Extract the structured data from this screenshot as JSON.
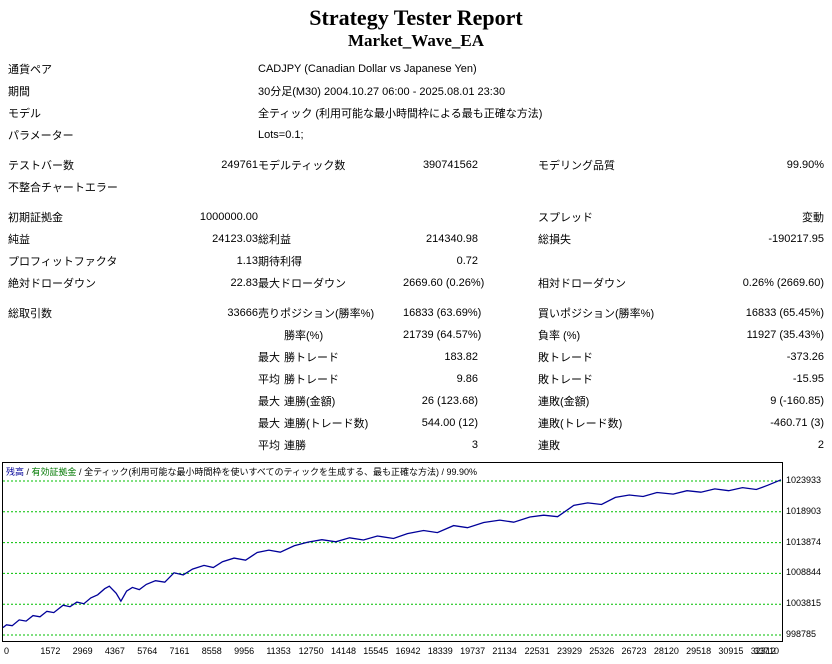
{
  "header": {
    "title": "Strategy Tester Report",
    "subtitle": "Market_Wave_EA"
  },
  "info": [
    {
      "label": "通貨ペア",
      "value": "CADJPY (Canadian Dollar vs Japanese Yen)"
    },
    {
      "label": "期間",
      "value": "30分足(M30) 2004.10.27 06:00 - 2025.08.01 23:30"
    },
    {
      "label": "モデル",
      "value": "全ティック (利用可能な最小時間枠による最も正確な方法)"
    },
    {
      "label": "パラメーター",
      "value": "Lots=0.1;"
    }
  ],
  "stats": [
    {
      "c1": "テストバー数",
      "v1": "249761",
      "c3": "モデルティック数",
      "v2": "390741562",
      "c5": "モデリング品質",
      "v3": "99.90%"
    },
    {
      "c1": "不整合チャートエラー",
      "v1": "",
      "c3": "",
      "v2": "",
      "c5": "",
      "v3": ""
    },
    {
      "c1": "初期証拠金",
      "v1": "1000000.00",
      "c3": "",
      "v2": "",
      "c5": "スプレッド",
      "v3": "変動"
    },
    {
      "c1": "純益",
      "v1": "24123.03",
      "c3": "総利益",
      "v2": "214340.98",
      "c5": "総損失",
      "v3": "-190217.95"
    },
    {
      "c1": "プロフィットファクタ",
      "v1": "1.13",
      "c3": "期待利得",
      "v2": "0.72",
      "c5": "",
      "v3": ""
    },
    {
      "c1": "絶対ドローダウン",
      "v1": "22.83",
      "c3": "最大ドローダウン",
      "v2": "2669.60 (0.26%)",
      "c5": "相対ドローダウン",
      "v3": "0.26% (2669.60)"
    },
    {
      "c1": "総取引数",
      "v1": "33666",
      "c3": "売りポジション(勝率%)",
      "v2": "16833 (63.69%)",
      "c5": "買いポジション(勝率%)",
      "v3": "16833 (65.45%)"
    },
    {
      "q": "",
      "c3": "勝率(%)",
      "v2": "21739 (64.57%)",
      "c5": "負率 (%)",
      "v3": "11927 (35.43%)"
    },
    {
      "q": "最大",
      "c3": "勝トレード",
      "v2": "183.82",
      "c5": "敗トレード",
      "v3": "-373.26"
    },
    {
      "q": "平均",
      "c3": "勝トレード",
      "v2": "9.86",
      "c5": "敗トレード",
      "v3": "-15.95"
    },
    {
      "q": "最大",
      "c3": "連勝(金額)",
      "v2": "26 (123.68)",
      "c5": "連敗(金額)",
      "v3": "9 (-160.85)"
    },
    {
      "q": "最大",
      "c3": "連勝(トレード数)",
      "v2": "544.00 (12)",
      "c5": "連敗(トレード数)",
      "v3": "-460.71 (3)"
    },
    {
      "q": "平均",
      "c3": "連勝",
      "v2": "3",
      "c5": "連敗",
      "v3": "2"
    }
  ],
  "chart_data": {
    "type": "line",
    "legend_items": [
      {
        "text": "残高",
        "color": "#000099"
      },
      {
        "text": "有効証拠金",
        "color": "#007800"
      },
      {
        "text": "全ティック(利用可能な最小時間枠を使いすべてのティックを生成する、最も正確な方法)",
        "color": "#000000"
      },
      {
        "text": "99.90%",
        "color": "#000000"
      }
    ],
    "legend_separator": " / ",
    "x_ticks": [
      0,
      1572,
      2969,
      4367,
      5764,
      7161,
      8558,
      9956,
      11353,
      12750,
      14148,
      15545,
      16942,
      18339,
      19737,
      21134,
      22531,
      23929,
      25326,
      26723,
      28120,
      29518,
      30915,
      32312,
      33710
    ],
    "y_ticks": [
      1023933,
      1018903,
      1013874,
      1008844,
      1003815,
      998785
    ],
    "x_range": [
      0,
      33710
    ],
    "plot_value_range": [
      997805,
      1026872
    ],
    "grid_color": "#00c000",
    "line_color": "#000099",
    "series": [
      {
        "name": "残高",
        "color": "#000099",
        "points": [
          [
            0,
            1000000
          ],
          [
            150,
            1000450
          ],
          [
            400,
            1000300
          ],
          [
            700,
            1001250
          ],
          [
            1000,
            1001050
          ],
          [
            1300,
            1001950
          ],
          [
            1600,
            1001750
          ],
          [
            1900,
            1002650
          ],
          [
            2200,
            1002450
          ],
          [
            2600,
            1003650
          ],
          [
            2900,
            1003400
          ],
          [
            3200,
            1004150
          ],
          [
            3500,
            1003900
          ],
          [
            3800,
            1004850
          ],
          [
            4100,
            1005350
          ],
          [
            4400,
            1006350
          ],
          [
            4600,
            1006750
          ],
          [
            4900,
            1005600
          ],
          [
            5100,
            1004300
          ],
          [
            5350,
            1005950
          ],
          [
            5600,
            1006550
          ],
          [
            5900,
            1006200
          ],
          [
            6200,
            1007050
          ],
          [
            6600,
            1007650
          ],
          [
            7000,
            1007400
          ],
          [
            7400,
            1008950
          ],
          [
            7800,
            1008600
          ],
          [
            8200,
            1009550
          ],
          [
            8700,
            1010150
          ],
          [
            9100,
            1009800
          ],
          [
            9500,
            1010750
          ],
          [
            10000,
            1011350
          ],
          [
            10500,
            1011000
          ],
          [
            11000,
            1012250
          ],
          [
            11500,
            1012650
          ],
          [
            12000,
            1012300
          ],
          [
            12600,
            1013350
          ],
          [
            13200,
            1013950
          ],
          [
            13800,
            1014350
          ],
          [
            14400,
            1014000
          ],
          [
            15000,
            1014650
          ],
          [
            15600,
            1014300
          ],
          [
            16200,
            1014950
          ],
          [
            16900,
            1014550
          ],
          [
            17500,
            1015350
          ],
          [
            18200,
            1015850
          ],
          [
            18800,
            1015500
          ],
          [
            19500,
            1016650
          ],
          [
            20100,
            1016300
          ],
          [
            20800,
            1017150
          ],
          [
            21500,
            1017550
          ],
          [
            22100,
            1017200
          ],
          [
            22800,
            1018050
          ],
          [
            23400,
            1018350
          ],
          [
            24000,
            1018100
          ],
          [
            24700,
            1019950
          ],
          [
            25300,
            1020350
          ],
          [
            25900,
            1020100
          ],
          [
            26500,
            1021250
          ],
          [
            27100,
            1021650
          ],
          [
            27700,
            1021400
          ],
          [
            28300,
            1022050
          ],
          [
            29000,
            1021800
          ],
          [
            29600,
            1022350
          ],
          [
            30200,
            1022100
          ],
          [
            30800,
            1022650
          ],
          [
            31400,
            1022350
          ],
          [
            32000,
            1022850
          ],
          [
            32600,
            1022550
          ],
          [
            33100,
            1023250
          ],
          [
            33666,
            1024123
          ]
        ]
      }
    ]
  }
}
